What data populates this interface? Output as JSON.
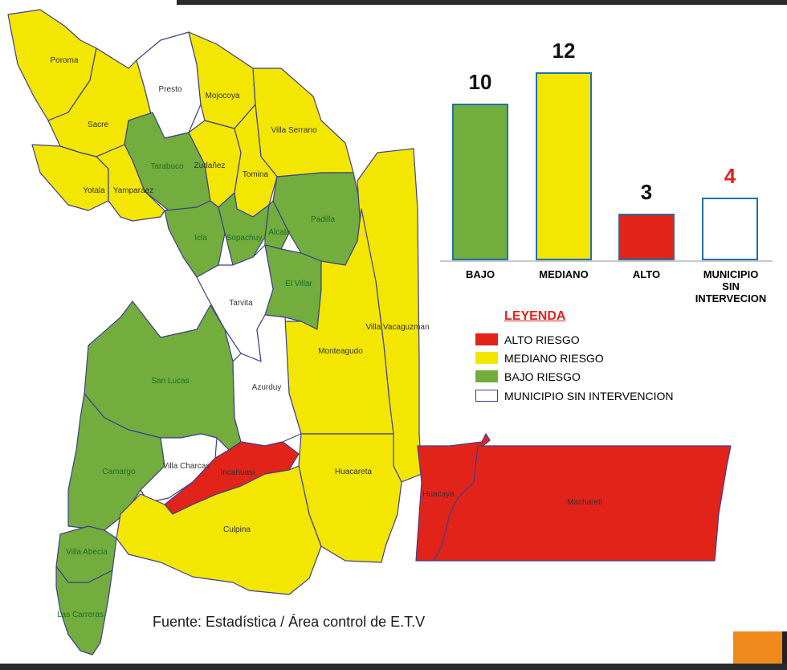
{
  "colors": {
    "bajo": "#72ad3d",
    "mediano": "#f3e600",
    "alto": "#e2231a",
    "sin": "#ffffff",
    "border": "#3f3f8f",
    "accent_orange": "#f08a1c"
  },
  "municipios": [
    {
      "name": "Poroma",
      "risk": "mediano"
    },
    {
      "name": "Presto",
      "risk": "sin"
    },
    {
      "name": "Mojocoya",
      "risk": "mediano"
    },
    {
      "name": "Sacre",
      "risk": "mediano"
    },
    {
      "name": "Villa Serrano",
      "risk": "mediano"
    },
    {
      "name": "Tarabuco",
      "risk": "bajo"
    },
    {
      "name": "Zudañez",
      "risk": "mediano"
    },
    {
      "name": "Tomina",
      "risk": "mediano"
    },
    {
      "name": "Yotala",
      "risk": "mediano"
    },
    {
      "name": "Yamparaez",
      "risk": "mediano"
    },
    {
      "name": "Padilla",
      "risk": "bajo"
    },
    {
      "name": "Icla",
      "risk": "bajo"
    },
    {
      "name": "Sopachuy",
      "risk": "bajo"
    },
    {
      "name": "Alcala",
      "risk": "bajo"
    },
    {
      "name": "El Villar",
      "risk": "bajo"
    },
    {
      "name": "Tarvita",
      "risk": "sin"
    },
    {
      "name": "Villa Vacaguzman",
      "risk": "mediano"
    },
    {
      "name": "Monteagudo",
      "risk": "mediano"
    },
    {
      "name": "San Lucas",
      "risk": "bajo"
    },
    {
      "name": "Azurduy",
      "risk": "sin"
    },
    {
      "name": "Camargo",
      "risk": "bajo"
    },
    {
      "name": "Villa Charcas",
      "risk": "sin"
    },
    {
      "name": "Incahuasi",
      "risk": "alto"
    },
    {
      "name": "Huacareta",
      "risk": "mediano"
    },
    {
      "name": "Huacaya",
      "risk": "alto"
    },
    {
      "name": "Machareti",
      "risk": "alto"
    },
    {
      "name": "Culpina",
      "risk": "mediano"
    },
    {
      "name": "Villa Abecia",
      "risk": "bajo"
    },
    {
      "name": "Las Carreras",
      "risk": "bajo"
    }
  ],
  "chart_data": {
    "type": "bar",
    "categories": [
      "BAJO",
      "MEDIANO",
      "ALTO",
      "MUNICIPIO\nSIN\nINTERVECION"
    ],
    "values": [
      10,
      12,
      3,
      4
    ],
    "value_colors": [
      "#111111",
      "#111111",
      "#111111",
      "#e2231a"
    ],
    "fill_colors": [
      "#72ad3d",
      "#f3e600",
      "#e2231a",
      "#ffffff"
    ],
    "ylim": [
      0,
      12
    ],
    "grid": false
  },
  "legend": {
    "title": "LEYENDA",
    "items": [
      {
        "label": "ALTO RIESGO",
        "color": "#e2231a"
      },
      {
        "label": "MEDIANO RIESGO",
        "color": "#f3e600"
      },
      {
        "label": "BAJO RIESGO",
        "color": "#72ad3d"
      },
      {
        "label": "MUNICIPIO SIN INTERVENCION",
        "color": "#ffffff"
      }
    ]
  },
  "source": "Fuente: Estadística / Área control de E.T.V"
}
